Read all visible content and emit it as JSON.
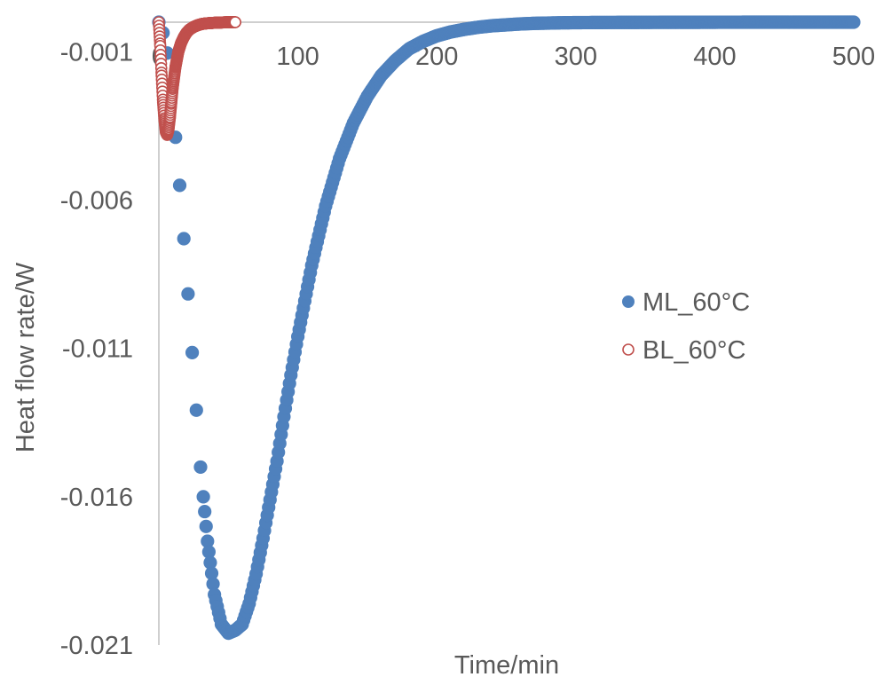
{
  "chart_data": {
    "type": "scatter",
    "title": "",
    "xlabel": "Time/min",
    "ylabel": "Heat flow rate/W",
    "xlim": [
      0,
      500
    ],
    "ylim": [
      -0.021,
      0
    ],
    "x_ticks": [
      "0",
      "100",
      "200",
      "300",
      "400",
      "500"
    ],
    "y_ticks": [
      "-0.001",
      "-0.006",
      "-0.011",
      "-0.016",
      "-0.021"
    ],
    "x_axis_at_y": 0,
    "grid": false,
    "legend_position": "right",
    "series": [
      {
        "name": "ML_60°C",
        "color": "#4f81bd",
        "marker": "filled-circle",
        "x": [
          0,
          5,
          10,
          15,
          20,
          25,
          30,
          35,
          40,
          45,
          50,
          55,
          60,
          65,
          70,
          75,
          80,
          85,
          90,
          95,
          100,
          110,
          120,
          130,
          140,
          150,
          160,
          170,
          180,
          190,
          200,
          210,
          220,
          230,
          240,
          250,
          260,
          270,
          280,
          290,
          300,
          320,
          340,
          360,
          380,
          400,
          420,
          440,
          460,
          480,
          500
        ],
        "y": [
          0,
          -0.0006,
          -0.0028,
          -0.0055,
          -0.0085,
          -0.0118,
          -0.015,
          -0.0175,
          -0.0193,
          -0.0203,
          -0.0206,
          -0.0205,
          -0.0203,
          -0.0196,
          -0.0186,
          -0.0174,
          -0.0161,
          -0.0148,
          -0.0133,
          -0.0119,
          -0.0106,
          -0.0082,
          -0.0062,
          -0.0046,
          -0.0034,
          -0.0025,
          -0.0018,
          -0.0013,
          -0.0009,
          -0.00065,
          -0.00046,
          -0.00033,
          -0.00024,
          -0.00017,
          -0.00012,
          -9e-05,
          -6e-05,
          -4e-05,
          -3e-05,
          -2e-05,
          -1.5e-05,
          -1e-05,
          -7e-06,
          -5e-06,
          -3e-06,
          -2e-06,
          -1e-06,
          -1e-06,
          0,
          0,
          0
        ]
      },
      {
        "name": "BL_60°C",
        "color": "#c0504d",
        "marker": "open-circle",
        "x": [
          0,
          1,
          2,
          3,
          4,
          5,
          6,
          7,
          8,
          9,
          10,
          12,
          14,
          16,
          18,
          20,
          22,
          25,
          28,
          31,
          34,
          37,
          40,
          45,
          50,
          55
        ],
        "y": [
          0,
          -0.0008,
          -0.0018,
          -0.0027,
          -0.0033,
          -0.0037,
          -0.0038,
          -0.0036,
          -0.0032,
          -0.0027,
          -0.0022,
          -0.0015,
          -0.001,
          -0.0007,
          -0.0005,
          -0.00035,
          -0.00025,
          -0.00016,
          -0.0001,
          -6e-05,
          -4e-05,
          -3e-05,
          -2e-05,
          -1e-05,
          0,
          0
        ]
      }
    ]
  }
}
